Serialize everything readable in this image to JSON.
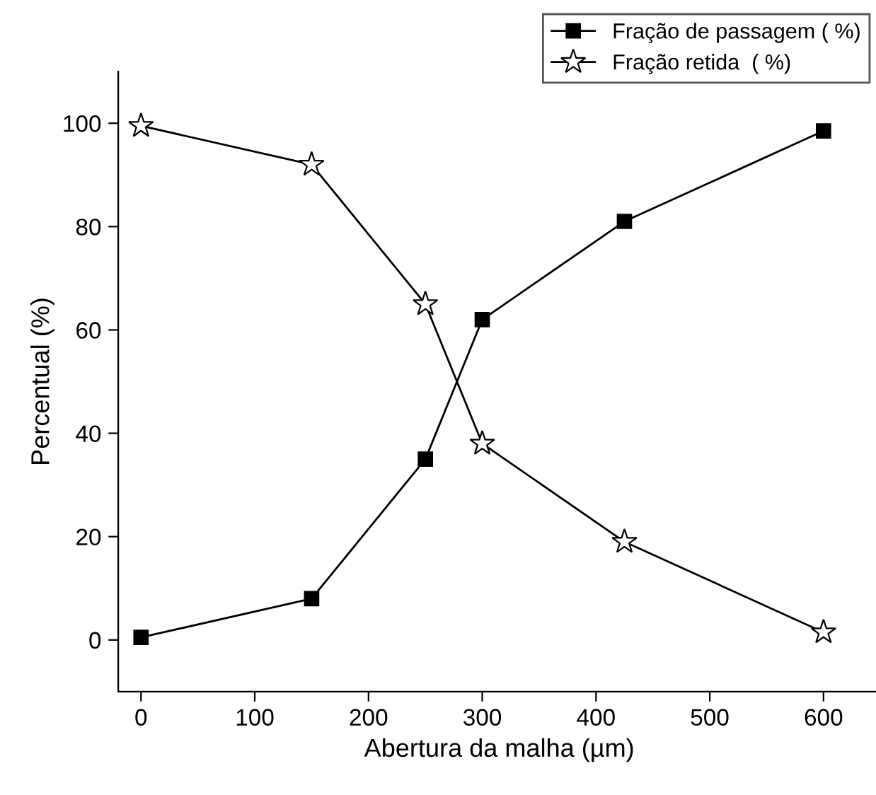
{
  "chart_data": {
    "type": "line",
    "xlabel": "Abertura da malha (µm)",
    "ylabel": "Percentual (%)",
    "x": [
      0,
      150,
      250,
      300,
      425,
      600
    ],
    "series": [
      {
        "name": "Fração de passagem ( %)",
        "color": "#000000",
        "marker": "square",
        "values": [
          0.5,
          8,
          35,
          62,
          81,
          98.5
        ]
      },
      {
        "name": "Fração retida  ( %)",
        "color": "#000000",
        "marker": "star",
        "values": [
          99.5,
          92,
          65,
          38,
          19,
          1.5
        ]
      }
    ],
    "xlim": [
      -20,
      650
    ],
    "xticks": [
      0,
      100,
      200,
      300,
      400,
      500,
      600
    ],
    "ylim": [
      -10,
      110
    ],
    "yticks": [
      0,
      20,
      40,
      60,
      80,
      100
    ],
    "grid": false,
    "legend": "top right",
    "line_style": "solid"
  }
}
